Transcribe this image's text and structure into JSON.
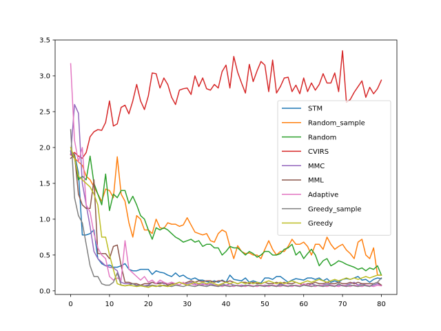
{
  "chart_data": {
    "type": "line",
    "title": "",
    "xlabel": "",
    "ylabel": "",
    "xlim": [
      -4,
      84
    ],
    "ylim": [
      -0.05,
      3.5
    ],
    "xticks": [
      0,
      10,
      20,
      30,
      40,
      50,
      60,
      70,
      80
    ],
    "yticks": [
      0.0,
      0.5,
      1.0,
      1.5,
      2.0,
      2.5,
      3.0,
      3.5
    ],
    "xtick_labels": [
      "0",
      "10",
      "20",
      "30",
      "40",
      "50",
      "60",
      "70",
      "80"
    ],
    "ytick_labels": [
      "0.0",
      "0.5",
      "1.0",
      "1.5",
      "2.0",
      "2.5",
      "3.0",
      "3.5"
    ],
    "grid": false,
    "legend_position": "center-right",
    "series": [
      {
        "name": "STM",
        "color": "#1f77b4",
        "x_start": 0,
        "values": [
          1.95,
          1.9,
          1.65,
          0.78,
          0.78,
          0.8,
          0.85,
          0.45,
          0.38,
          0.35,
          0.36,
          0.33,
          0.33,
          0.35,
          0.38,
          0.3,
          0.28,
          0.28,
          0.3,
          0.3,
          0.3,
          0.23,
          0.28,
          0.26,
          0.25,
          0.22,
          0.2,
          0.25,
          0.2,
          0.22,
          0.18,
          0.16,
          0.18,
          0.15,
          0.15,
          0.13,
          0.12,
          0.14,
          0.12,
          0.15,
          0.12,
          0.22,
          0.16,
          0.15,
          0.14,
          0.18,
          0.12,
          0.14,
          0.12,
          0.11,
          0.18,
          0.18,
          0.16,
          0.2,
          0.2,
          0.16,
          0.12,
          0.15,
          0.17,
          0.16,
          0.15,
          0.18,
          0.18,
          0.16,
          0.18,
          0.14,
          0.17,
          0.12,
          0.14,
          0.12,
          0.16,
          0.17,
          0.16,
          0.18,
          0.2,
          0.15,
          0.16,
          0.12,
          0.16,
          0.18,
          0.17
        ]
      },
      {
        "name": "Random_sample",
        "color": "#ff7f0e",
        "x_start": 0,
        "values": [
          1.9,
          1.85,
          1.8,
          1.75,
          1.6,
          1.55,
          1.45,
          1.35,
          1.25,
          1.42,
          1.4,
          1.3,
          1.87,
          1.35,
          1.25,
          0.95,
          0.75,
          1.05,
          1.0,
          0.85,
          0.85,
          0.8,
          1.0,
          0.88,
          0.87,
          0.95,
          0.93,
          0.93,
          0.9,
          0.92,
          1.02,
          0.92,
          0.82,
          0.8,
          0.78,
          0.8,
          0.7,
          0.68,
          0.8,
          0.85,
          0.82,
          0.62,
          0.45,
          0.63,
          0.55,
          0.52,
          0.53,
          0.5,
          0.5,
          0.45,
          0.58,
          0.7,
          0.58,
          0.5,
          0.55,
          0.55,
          0.62,
          0.72,
          0.65,
          0.65,
          0.68,
          0.62,
          0.5,
          0.65,
          0.65,
          0.58,
          0.75,
          0.65,
          0.58,
          0.62,
          0.65,
          0.57,
          0.52,
          0.45,
          0.68,
          0.72,
          0.5,
          0.45,
          0.6,
          0.22,
          0.22
        ]
      },
      {
        "name": "Random",
        "color": "#2ca02c",
        "x_start": 0,
        "values": [
          1.95,
          1.85,
          1.55,
          1.6,
          1.55,
          1.88,
          1.5,
          1.35,
          1.2,
          1.63,
          1.12,
          1.35,
          1.3,
          1.4,
          1.4,
          1.22,
          1.32,
          1.2,
          1.05,
          1.0,
          0.85,
          0.72,
          0.88,
          0.85,
          0.88,
          0.85,
          0.8,
          0.75,
          0.72,
          0.68,
          0.7,
          0.72,
          0.68,
          0.7,
          0.62,
          0.65,
          0.65,
          0.6,
          0.6,
          0.5,
          0.55,
          0.62,
          0.6,
          0.6,
          0.55,
          0.5,
          0.55,
          0.52,
          0.47,
          0.5,
          0.55,
          0.55,
          0.5,
          0.5,
          0.52,
          0.58,
          0.6,
          0.65,
          0.5,
          0.55,
          0.45,
          0.52,
          0.58,
          0.5,
          0.35,
          0.42,
          0.45,
          0.35,
          0.38,
          0.42,
          0.4,
          0.37,
          0.35,
          0.33,
          0.3,
          0.32,
          0.28,
          0.32,
          0.3,
          0.35,
          0.22
        ]
      },
      {
        "name": "CVIRS",
        "color": "#d62728",
        "x_start": 0,
        "values": [
          1.9,
          1.93,
          1.88,
          1.85,
          1.93,
          2.15,
          2.22,
          2.25,
          2.24,
          2.35,
          2.65,
          2.3,
          2.33,
          2.56,
          2.59,
          2.47,
          2.65,
          2.88,
          2.65,
          2.53,
          2.72,
          3.04,
          3.03,
          2.83,
          2.97,
          2.88,
          2.7,
          2.6,
          2.8,
          2.82,
          2.83,
          2.74,
          3.0,
          2.85,
          2.97,
          2.82,
          2.8,
          2.88,
          2.83,
          3.06,
          3.15,
          2.83,
          3.27,
          3.05,
          2.9,
          2.76,
          3.16,
          2.92,
          3.07,
          3.2,
          3.15,
          2.78,
          3.22,
          2.76,
          2.85,
          2.97,
          2.98,
          2.78,
          2.87,
          2.75,
          2.97,
          2.78,
          2.9,
          2.8,
          2.88,
          3.03,
          2.9,
          2.9,
          3.04,
          2.78,
          3.35,
          2.63,
          2.67,
          2.77,
          2.85,
          2.93,
          2.7,
          2.84,
          2.75,
          2.82,
          2.94
        ]
      },
      {
        "name": "MMC",
        "color": "#9467bd",
        "x_start": 0,
        "values": [
          1.9,
          2.6,
          2.48,
          1.5,
          1.2,
          0.9,
          0.55,
          0.45,
          0.4,
          0.35,
          0.33,
          0.32,
          0.28,
          0.12,
          0.1,
          0.1,
          0.1,
          0.08,
          0.08,
          0.07,
          0.08,
          0.12,
          0.1,
          0.12,
          0.1,
          0.1,
          0.12,
          0.1,
          0.12,
          0.1,
          0.1,
          0.12,
          0.1,
          0.08,
          0.1,
          0.08,
          0.1,
          0.08,
          0.07,
          0.1,
          0.08,
          0.1,
          0.08,
          0.07,
          0.08,
          0.07,
          0.08,
          0.06,
          0.08,
          0.07,
          0.08,
          0.07,
          0.08,
          0.07,
          0.1,
          0.08,
          0.07,
          0.08,
          0.07,
          0.06,
          0.08,
          0.07,
          0.1,
          0.08,
          0.07,
          0.08,
          0.1,
          0.08,
          0.07,
          0.08,
          0.07,
          0.08,
          0.1,
          0.12,
          0.08,
          0.1,
          0.08,
          0.07,
          0.08,
          0.1,
          0.08
        ]
      },
      {
        "name": "MML",
        "color": "#8c564b",
        "x_start": 0,
        "values": [
          1.85,
          1.9,
          1.35,
          1.2,
          1.15,
          1.15,
          1.55,
          0.52,
          0.52,
          0.52,
          0.45,
          0.62,
          0.64,
          0.35,
          0.12,
          0.12,
          0.1,
          0.1,
          0.08,
          0.1,
          0.1,
          0.12,
          0.1,
          0.1,
          0.12,
          0.08,
          0.1,
          0.1,
          0.12,
          0.1,
          0.12,
          0.14,
          0.12,
          0.14,
          0.13,
          0.14,
          0.14,
          0.12,
          0.14,
          0.14,
          0.12,
          0.14,
          0.12,
          0.1,
          0.12,
          0.12,
          0.1,
          0.12,
          0.1,
          0.1,
          0.12,
          0.1,
          0.1,
          0.12,
          0.1,
          0.12,
          0.1,
          0.1,
          0.12,
          0.1,
          0.08,
          0.1,
          0.1,
          0.12,
          0.1,
          0.1,
          0.12,
          0.1,
          0.1,
          0.12,
          0.1,
          0.1,
          0.12,
          0.1,
          0.12,
          0.1,
          0.1,
          0.1,
          0.1,
          0.12,
          0.08
        ]
      },
      {
        "name": "Adaptive",
        "color": "#e377c2",
        "x_start": 0,
        "values": [
          3.17,
          2.1,
          1.8,
          2.0,
          1.2,
          1.1,
          0.8,
          0.6,
          0.5,
          0.45,
          0.2,
          0.15,
          0.18,
          0.15,
          0.7,
          0.3,
          0.25,
          0.2,
          0.15,
          0.2,
          0.12,
          0.15,
          0.1,
          0.15,
          0.12,
          0.1,
          0.12,
          0.1,
          0.08,
          0.12,
          0.08,
          0.1,
          0.08,
          0.1,
          0.08,
          0.1,
          0.08,
          0.07,
          0.08,
          0.06,
          0.08,
          0.07,
          0.06,
          0.08,
          0.07,
          0.06,
          0.08,
          0.07,
          0.06,
          0.08,
          0.07,
          0.06,
          0.08,
          0.07,
          0.06,
          0.08,
          0.07,
          0.06,
          0.08,
          0.07,
          0.1,
          0.08,
          0.07,
          0.06,
          0.08,
          0.07,
          0.06,
          0.08,
          0.07,
          0.06,
          0.08,
          0.07,
          0.06,
          0.08,
          0.07,
          0.06,
          0.08,
          0.07,
          0.06,
          0.08,
          0.07
        ]
      },
      {
        "name": "Greedy_sample",
        "color": "#7f7f7f",
        "x_start": 0,
        "values": [
          2.25,
          1.3,
          1.05,
          0.95,
          0.65,
          0.35,
          0.2,
          0.2,
          0.1,
          0.08,
          0.08,
          0.12,
          0.25,
          0.08,
          0.07,
          0.08,
          0.1,
          0.07,
          0.08,
          0.06,
          0.07,
          0.08,
          0.07,
          0.06,
          0.08,
          0.07,
          0.06,
          0.08,
          0.07,
          0.06,
          0.08,
          0.07,
          0.06,
          0.08,
          0.07,
          0.06,
          0.08,
          0.07,
          0.06,
          0.08,
          0.07,
          0.06,
          0.08,
          0.07,
          0.06,
          0.08,
          0.07,
          0.06,
          0.08,
          0.07,
          0.06,
          0.08,
          0.07,
          0.06,
          0.08,
          0.07,
          0.06,
          0.08,
          0.07,
          0.06,
          0.08,
          0.07,
          0.06,
          0.08,
          0.07,
          0.06,
          0.08,
          0.07,
          0.06,
          0.1,
          0.07,
          0.06,
          0.08,
          0.07,
          0.06,
          0.08,
          0.07,
          0.06,
          0.1,
          0.12,
          0.18
        ]
      },
      {
        "name": "Greedy",
        "color": "#bcbd22",
        "x_start": 0,
        "values": [
          2.0,
          1.85,
          1.6,
          1.55,
          1.5,
          1.45,
          1.35,
          1.2,
          0.75,
          0.75,
          0.5,
          0.3,
          0.1,
          0.08,
          0.07,
          0.08,
          0.07,
          0.06,
          0.07,
          0.06,
          0.05,
          0.07,
          0.06,
          0.08,
          0.07,
          0.06,
          0.08,
          0.1,
          0.12,
          0.1,
          0.08,
          0.1,
          0.12,
          0.1,
          0.12,
          0.1,
          0.12,
          0.1,
          0.08,
          0.1,
          0.12,
          0.1,
          0.12,
          0.1,
          0.12,
          0.1,
          0.12,
          0.1,
          0.12,
          0.1,
          0.12,
          0.14,
          0.12,
          0.1,
          0.12,
          0.1,
          0.12,
          0.14,
          0.12,
          0.1,
          0.12,
          0.14,
          0.12,
          0.14,
          0.16,
          0.14,
          0.12,
          0.14,
          0.16,
          0.14,
          0.16,
          0.18,
          0.16,
          0.18,
          0.16,
          0.18,
          0.2,
          0.18,
          0.2,
          0.22,
          0.22
        ]
      }
    ]
  }
}
